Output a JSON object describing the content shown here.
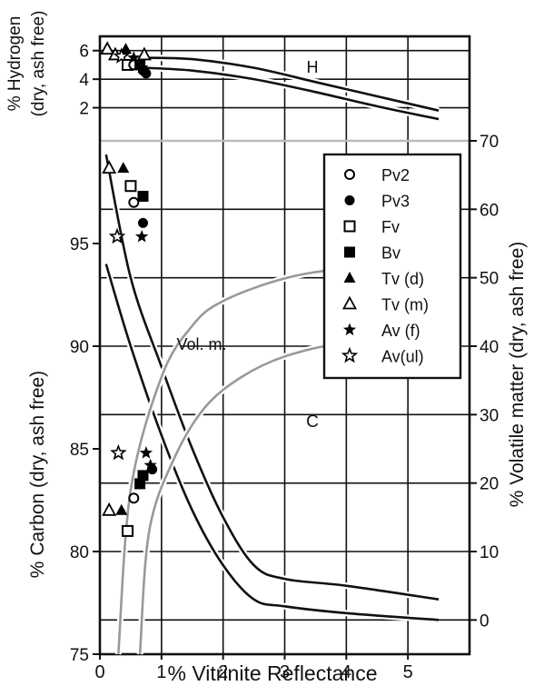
{
  "chart_data": {
    "type": "scatter",
    "x_axis": {
      "label": "% Vitrinite Reflectance",
      "ticks": [
        0,
        1,
        2,
        3,
        4,
        5
      ],
      "range": [
        0,
        6
      ]
    },
    "panels": {
      "hydrogen": {
        "ylabel_line1": "% Hydrogen",
        "ylabel_line2": "(dry, ash free)",
        "ticks": [
          2,
          4,
          6
        ],
        "range": [
          0,
          7
        ],
        "band_label": "H"
      },
      "volatile": {
        "ylabel": "% Volatile matter  (dry, ash free)",
        "ticks": [
          0,
          10,
          20,
          30,
          40,
          50,
          60,
          70
        ],
        "range": [
          -5,
          70
        ],
        "band_label": "Vol. m."
      },
      "carbon": {
        "ylabel": "% Carbon (dry, ash free)",
        "ticks": [
          75,
          80,
          85,
          90,
          95
        ],
        "range": [
          75,
          100
        ],
        "band_label": "C"
      }
    },
    "legend": {
      "placement": "right, middle",
      "entries": [
        {
          "label": "Pv2",
          "marker": "open-circle"
        },
        {
          "label": "Pv3",
          "marker": "filled-circle"
        },
        {
          "label": "Fv",
          "marker": "open-square"
        },
        {
          "label": "Bv",
          "marker": "filled-square"
        },
        {
          "label": "Tv  (d)",
          "marker": "filled-triangle"
        },
        {
          "label": "Tv  (m)",
          "marker": "open-triangle"
        },
        {
          "label": "Av (f)",
          "marker": "filled-star"
        },
        {
          "label": "Av(ul)",
          "marker": "open-star"
        }
      ]
    },
    "hydrogen_points": [
      {
        "series": "Tv  (m)",
        "x": 0.12,
        "y": 6.1
      },
      {
        "series": "Tv  (d)",
        "x": 0.42,
        "y": 6.1
      },
      {
        "series": "Tv  (m)",
        "x": 0.25,
        "y": 5.7
      },
      {
        "series": "Tv  (m)",
        "x": 0.72,
        "y": 5.7
      },
      {
        "series": "Av(ul)",
        "x": 0.35,
        "y": 5.6
      },
      {
        "series": "Av (f)",
        "x": 0.55,
        "y": 5.5
      },
      {
        "series": "Fv",
        "x": 0.45,
        "y": 5.0
      },
      {
        "series": "Pv2",
        "x": 0.55,
        "y": 5.0
      },
      {
        "series": "Bv",
        "x": 0.65,
        "y": 5.0
      },
      {
        "series": "Av (f)",
        "x": 0.68,
        "y": 4.8
      },
      {
        "series": "Pv3",
        "x": 0.7,
        "y": 4.6
      },
      {
        "series": "Pv3",
        "x": 0.75,
        "y": 4.4
      }
    ],
    "volatile_points": [
      {
        "series": "Tv  (m)",
        "x": 0.15,
        "y": 66
      },
      {
        "series": "Tv  (d)",
        "x": 0.38,
        "y": 66
      },
      {
        "series": "Av(ul)",
        "x": 0.28,
        "y": 56
      },
      {
        "series": "Av (f)",
        "x": 0.68,
        "y": 56
      }
    ],
    "carbon_points": [
      {
        "series": "Fv",
        "x": 0.5,
        "y": 97.8
      },
      {
        "series": "Bv",
        "x": 0.7,
        "y": 97.3
      },
      {
        "series": "Pv2",
        "x": 0.55,
        "y": 97.0
      },
      {
        "series": "Pv3",
        "x": 0.7,
        "y": 96.0
      },
      {
        "series": "Av(ul)",
        "x": 0.3,
        "y": 84.8
      },
      {
        "series": "Av (f)",
        "x": 0.75,
        "y": 84.8
      },
      {
        "series": "Av (f)",
        "x": 0.82,
        "y": 84.2
      },
      {
        "series": "Pv3",
        "x": 0.85,
        "y": 84.0
      },
      {
        "series": "Bv",
        "x": 0.7,
        "y": 83.7
      },
      {
        "series": "Bv",
        "x": 0.65,
        "y": 83.3
      },
      {
        "series": "Pv2",
        "x": 0.55,
        "y": 82.6
      },
      {
        "series": "Tv  (m)",
        "x": 0.15,
        "y": 82.0
      },
      {
        "series": "Tv  (d)",
        "x": 0.35,
        "y": 82.0
      },
      {
        "series": "Fv",
        "x": 0.45,
        "y": 81.0
      }
    ],
    "bands": {
      "hydrogen": {
        "upper": [
          [
            0.7,
            5.5
          ],
          [
            1.5,
            5.4
          ],
          [
            2.5,
            4.8
          ],
          [
            3.5,
            3.8
          ],
          [
            4.5,
            2.8
          ],
          [
            5.5,
            1.8
          ]
        ],
        "lower": [
          [
            0.7,
            4.8
          ],
          [
            1.5,
            4.6
          ],
          [
            2.5,
            4.0
          ],
          [
            3.5,
            3.1
          ],
          [
            4.5,
            2.1
          ],
          [
            5.5,
            1.2
          ]
        ]
      },
      "volatile": {
        "upper": [
          [
            0.1,
            68
          ],
          [
            0.5,
            50
          ],
          [
            1.0,
            37
          ],
          [
            1.5,
            25
          ],
          [
            2.0,
            15
          ],
          [
            2.5,
            8
          ],
          [
            3.0,
            6
          ],
          [
            4.0,
            5
          ],
          [
            5.5,
            3
          ]
        ],
        "lower": [
          [
            0.1,
            52
          ],
          [
            0.5,
            40
          ],
          [
            1.0,
            27
          ],
          [
            1.5,
            16
          ],
          [
            2.0,
            8
          ],
          [
            2.5,
            3
          ],
          [
            3.0,
            2
          ],
          [
            4.0,
            1
          ],
          [
            5.5,
            0
          ]
        ]
      },
      "carbon": {
        "upper": [
          [
            0.3,
            75
          ],
          [
            0.5,
            83
          ],
          [
            1.0,
            88.5
          ],
          [
            1.5,
            91
          ],
          [
            2.0,
            92.2
          ],
          [
            3.0,
            93.3
          ],
          [
            4.0,
            93.8
          ],
          [
            5.5,
            94.2
          ]
        ],
        "lower": [
          [
            0.65,
            75
          ],
          [
            0.8,
            81
          ],
          [
            1.2,
            84.5
          ],
          [
            1.7,
            87
          ],
          [
            2.3,
            88.5
          ],
          [
            3.0,
            89.5
          ],
          [
            4.0,
            90.2
          ],
          [
            5.5,
            90.7
          ]
        ]
      }
    }
  },
  "colors": {
    "band_dark": "#111111",
    "band_light": "#999999",
    "marker": "#000000"
  }
}
